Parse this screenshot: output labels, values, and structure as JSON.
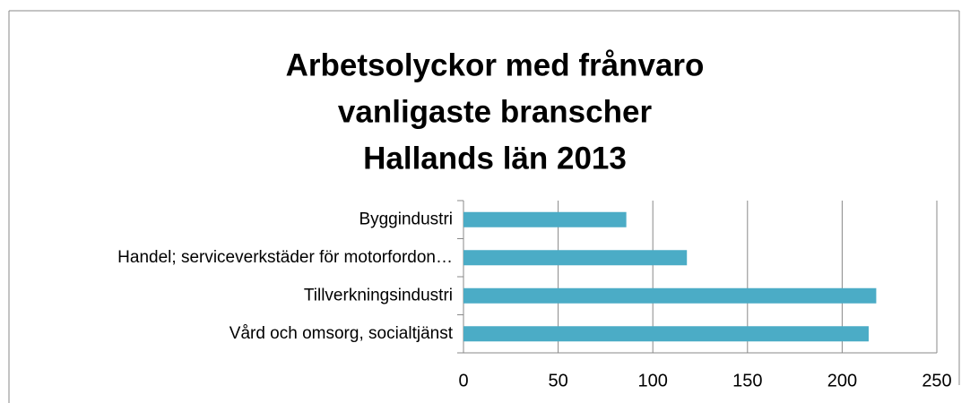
{
  "chart_data": {
    "type": "barh",
    "title": [
      "Arbetsolyckor med frånvaro",
      "vanligaste branscher",
      "Hallands län 2013"
    ],
    "categories": [
      "Byggindustri",
      "Handel; serviceverkstäder för motorfordon…",
      "Tillverkningsindustri",
      "Vård och omsorg, socialtjänst"
    ],
    "values": [
      86,
      118,
      218,
      214
    ],
    "color": "#4bacc6",
    "xlim": [
      0,
      250
    ],
    "xticks": [
      0,
      50,
      100,
      150,
      200,
      250
    ],
    "grid": true
  }
}
